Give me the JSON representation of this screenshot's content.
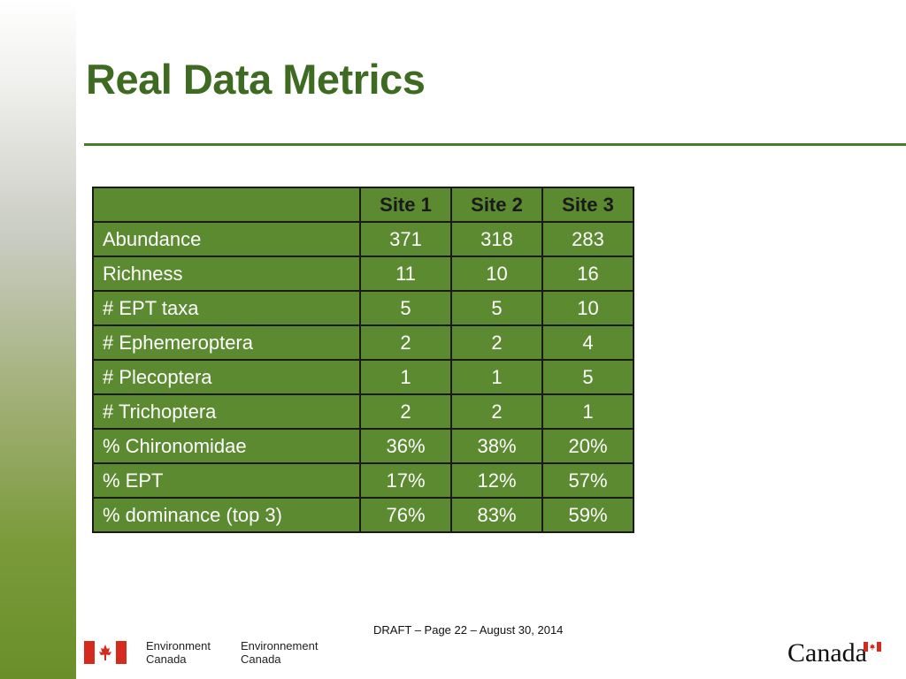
{
  "slide": {
    "title": "Real Data Metrics"
  },
  "table": {
    "headers": [
      "",
      "Site 1",
      "Site 2",
      "Site 3"
    ],
    "rows": [
      {
        "label": "Abundance",
        "values": [
          "371",
          "318",
          "283"
        ]
      },
      {
        "label": "Richness",
        "values": [
          "11",
          "10",
          "16"
        ]
      },
      {
        "label": "# EPT taxa",
        "values": [
          "5",
          "5",
          "10"
        ]
      },
      {
        "label": "# Ephemeroptera",
        "values": [
          "2",
          "2",
          "4"
        ]
      },
      {
        "label": "# Plecoptera",
        "values": [
          "1",
          "1",
          "5"
        ]
      },
      {
        "label": "# Trichoptera",
        "values": [
          "2",
          "2",
          "1"
        ]
      },
      {
        "label": "% Chironomidae",
        "values": [
          "36%",
          "38%",
          "20%"
        ]
      },
      {
        "label": "% EPT",
        "values": [
          "17%",
          "12%",
          "57%"
        ]
      },
      {
        "label": "% dominance (top 3)",
        "values": [
          "76%",
          "83%",
          "59%"
        ]
      }
    ]
  },
  "footer": {
    "text": "DRAFT – Page 22 – August 30, 2014"
  },
  "logo": {
    "en_line1": "Environment",
    "en_line2": "Canada",
    "fr_line1": "Environnement",
    "fr_line2": "Canada",
    "wordmark": "Canada",
    "flag_icon": "canada-flag-icon"
  },
  "colors": {
    "title": "#3e6b21",
    "table_fill": "#5b8a30",
    "flag_red": "#d52b1e"
  }
}
